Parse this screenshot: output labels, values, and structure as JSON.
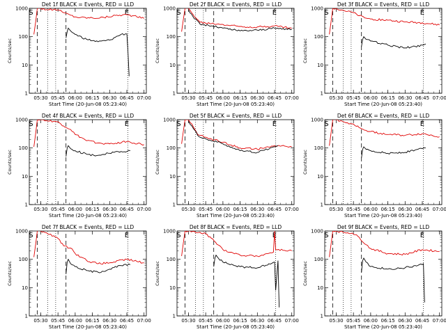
{
  "colors": {
    "events": "#000000",
    "lld": "#e00000",
    "axes": "#000000",
    "background": "#ffffff"
  },
  "chart_data": [
    {
      "type": "line",
      "title": "Det 1f BLACK = Events, RED = LLD",
      "xlabel": "Start Time (20-Jun-08 05:23:40)",
      "ylabel": "Counts/sec",
      "yscale": "log",
      "ylim": [
        1,
        1000
      ],
      "x_tick_labels": [
        "05:30",
        "05:45",
        "06:00",
        "06:15",
        "06:30",
        "06:45",
        "07:00"
      ],
      "y_tick_labels": [
        "1",
        "10",
        "100",
        "1000"
      ],
      "markers": {
        "start": "S",
        "end": "E"
      },
      "series": [
        {
          "color": "red",
          "x": [
            "05:24",
            "05:27",
            "05:30",
            "05:36",
            "05:45",
            "05:50",
            "05:55",
            "06:00",
            "06:05",
            "06:15",
            "06:25",
            "06:35",
            "06:45",
            "06:50",
            "07:00"
          ],
          "y": [
            120,
            1000,
            1000,
            900,
            900,
            700,
            600,
            500,
            480,
            460,
            480,
            560,
            600,
            550,
            440
          ]
        },
        {
          "color": "black",
          "x": [
            "05:52",
            "05:53",
            "05:54",
            "05:56",
            "06:00",
            "06:10",
            "06:20",
            "06:30",
            "06:35",
            "06:40",
            "06:45",
            "06:46",
            "06:47"
          ],
          "y": [
            90,
            150,
            200,
            160,
            120,
            80,
            66,
            75,
            95,
            120,
            125,
            30,
            4
          ]
        }
      ]
    },
    {
      "type": "line",
      "title": "Det 2f BLACK = Events, RED = LLD",
      "xlabel": "Start Time (20-Jun-08 05:23:40)",
      "ylabel": "Counts/sec",
      "yscale": "log",
      "ylim": [
        1,
        1000
      ],
      "x_tick_labels": [
        "05:30",
        "05:45",
        "06:00",
        "06:15",
        "06:30",
        "06:45",
        "07:00"
      ],
      "y_tick_labels": [
        "1",
        "10",
        "100",
        "1000"
      ],
      "markers": {
        "start": "S",
        "end": "E"
      },
      "series": [
        {
          "color": "red",
          "x": [
            "05:24",
            "05:27",
            "05:30",
            "05:34",
            "05:40",
            "05:50",
            "06:00",
            "06:15",
            "06:30",
            "06:45",
            "07:00"
          ],
          "y": [
            150,
            1000,
            1000,
            600,
            320,
            290,
            270,
            230,
            220,
            240,
            200
          ]
        },
        {
          "color": "black",
          "x": [
            "05:30",
            "05:34",
            "05:40",
            "05:50",
            "06:00",
            "06:15",
            "06:30",
            "06:45",
            "07:00"
          ],
          "y": [
            900,
            500,
            280,
            240,
            200,
            160,
            170,
            200,
            180
          ]
        }
      ]
    },
    {
      "type": "line",
      "title": "Det 3f BLACK = Events, RED = LLD",
      "xlabel": "Start Time (20-Jun-08 05:23:40)",
      "ylabel": "Counts/sec",
      "yscale": "log",
      "ylim": [
        1,
        1000
      ],
      "x_tick_labels": [
        "05:30",
        "05:45",
        "06:00",
        "06:15",
        "06:30",
        "06:45",
        "07:00"
      ],
      "y_tick_labels": [
        "1",
        "10",
        "100",
        "1000"
      ],
      "markers": {
        "start": "S",
        "end": "E"
      },
      "series": [
        {
          "color": "red",
          "x": [
            "05:24",
            "05:27",
            "05:30",
            "05:36",
            "05:45",
            "05:50",
            "05:56",
            "06:00",
            "06:15",
            "06:30",
            "06:45",
            "07:00"
          ],
          "y": [
            120,
            1000,
            1000,
            850,
            700,
            550,
            450,
            420,
            380,
            330,
            310,
            260
          ]
        },
        {
          "color": "black",
          "x": [
            "05:52",
            "05:53",
            "05:54",
            "05:56",
            "06:00",
            "06:15",
            "06:30",
            "06:45",
            "06:48"
          ],
          "y": [
            45,
            80,
            100,
            80,
            70,
            50,
            40,
            50,
            55
          ]
        }
      ]
    },
    {
      "type": "line",
      "title": "Det 4f BLACK = Events, RED = LLD",
      "xlabel": "Start Time (20-Jun-08 05:23:40)",
      "ylabel": "Counts/sec",
      "yscale": "log",
      "ylim": [
        1,
        1000
      ],
      "x_tick_labels": [
        "05:30",
        "05:45",
        "06:00",
        "06:15",
        "06:30",
        "06:45",
        "07:00"
      ],
      "y_tick_labels": [
        "1",
        "10",
        "100",
        "1000"
      ],
      "markers": {
        "start": "S",
        "end": "E"
      },
      "series": [
        {
          "color": "red",
          "x": [
            "05:24",
            "05:27",
            "05:30",
            "05:36",
            "05:44",
            "05:50",
            "05:56",
            "06:00",
            "06:10",
            "06:20",
            "06:30",
            "06:45",
            "07:00"
          ],
          "y": [
            110,
            1000,
            1000,
            900,
            850,
            600,
            450,
            300,
            180,
            150,
            140,
            170,
            130
          ]
        },
        {
          "color": "black",
          "x": [
            "05:52",
            "05:53",
            "05:54",
            "05:56",
            "06:00",
            "06:10",
            "06:20",
            "06:30",
            "06:40",
            "06:48"
          ],
          "y": [
            50,
            100,
            120,
            95,
            80,
            60,
            55,
            65,
            75,
            80
          ]
        }
      ]
    },
    {
      "type": "line",
      "title": "Det 5f BLACK = Events, RED = LLD",
      "xlabel": "Start Time (20-Jun-08 05:23:40)",
      "ylabel": "Counts/sec",
      "yscale": "log",
      "ylim": [
        1,
        1000
      ],
      "x_tick_labels": [
        "05:30",
        "05:45",
        "06:00",
        "06:15",
        "06:30",
        "06:45",
        "07:00"
      ],
      "y_tick_labels": [
        "1",
        "10",
        "100",
        "1000"
      ],
      "markers": {
        "start": "S",
        "end": "E"
      },
      "series": [
        {
          "color": "red",
          "x": [
            "05:24",
            "05:27",
            "05:30",
            "05:33",
            "05:38",
            "05:45",
            "06:00",
            "06:15",
            "06:30",
            "06:45",
            "07:00"
          ],
          "y": [
            140,
            1000,
            1000,
            700,
            300,
            240,
            160,
            100,
            90,
            120,
            110
          ]
        },
        {
          "color": "black",
          "x": [
            "05:30",
            "05:33",
            "05:38",
            "05:45",
            "06:00",
            "06:15",
            "06:30",
            "06:45",
            "06:48"
          ],
          "y": [
            900,
            600,
            280,
            210,
            140,
            80,
            70,
            110,
            120
          ]
        }
      ]
    },
    {
      "type": "line",
      "title": "Det 6f BLACK = Events, RED = LLD",
      "xlabel": "Start Time (20-Jun-08 05:23:40)",
      "ylabel": "Counts/sec",
      "yscale": "log",
      "ylim": [
        1,
        1000
      ],
      "x_tick_labels": [
        "05:30",
        "05:45",
        "06:00",
        "06:15",
        "06:30",
        "06:45",
        "07:00"
      ],
      "y_tick_labels": [
        "1",
        "10",
        "100",
        "1000"
      ],
      "markers": {
        "start": "S",
        "end": "E"
      },
      "series": [
        {
          "color": "red",
          "x": [
            "05:24",
            "05:27",
            "05:30",
            "05:36",
            "05:45",
            "05:50",
            "05:56",
            "06:00",
            "06:15",
            "06:30",
            "06:45",
            "07:00"
          ],
          "y": [
            120,
            1000,
            1000,
            850,
            700,
            520,
            420,
            380,
            300,
            280,
            320,
            250
          ]
        },
        {
          "color": "black",
          "x": [
            "05:52",
            "05:53",
            "05:54",
            "05:56",
            "06:00",
            "06:15",
            "06:30",
            "06:45",
            "06:48"
          ],
          "y": [
            45,
            90,
            110,
            90,
            80,
            65,
            70,
            95,
            100
          ]
        }
      ]
    },
    {
      "type": "line",
      "title": "Det 7f BLACK = Events, RED = LLD",
      "xlabel": "Start Time (20-Jun-08 05:23:40)",
      "ylabel": "Counts/sec",
      "yscale": "log",
      "ylim": [
        1,
        1000
      ],
      "x_tick_labels": [
        "05:30",
        "05:45",
        "06:00",
        "06:15",
        "06:30",
        "06:45",
        "07:00"
      ],
      "y_tick_labels": [
        "1",
        "10",
        "100",
        "1000"
      ],
      "markers": {
        "start": "S",
        "end": "E"
      },
      "series": [
        {
          "color": "red",
          "x": [
            "05:24",
            "05:27",
            "05:30",
            "05:36",
            "05:44",
            "05:50",
            "05:56",
            "06:00",
            "06:10",
            "06:20",
            "06:30",
            "06:45",
            "07:00"
          ],
          "y": [
            120,
            1000,
            1000,
            800,
            600,
            300,
            250,
            160,
            90,
            70,
            75,
            100,
            75
          ]
        },
        {
          "color": "black",
          "x": [
            "05:52",
            "05:53",
            "05:54",
            "05:56",
            "06:00",
            "06:10",
            "06:20",
            "06:30",
            "06:40",
            "06:48"
          ],
          "y": [
            30,
            80,
            100,
            70,
            55,
            40,
            35,
            45,
            60,
            65
          ]
        }
      ]
    },
    {
      "type": "line",
      "title": "Det 8f BLACK = Events, RED = LLD",
      "xlabel": "Start Time (20-Jun-08 05:23:40)",
      "ylabel": "Counts/sec",
      "yscale": "log",
      "ylim": [
        1,
        1000
      ],
      "x_tick_labels": [
        "05:30",
        "05:45",
        "06:00",
        "06:15",
        "06:30",
        "06:45",
        "07:00"
      ],
      "y_tick_labels": [
        "1",
        "10",
        "100",
        "1000"
      ],
      "markers": {
        "start": "S",
        "end": "E"
      },
      "series": [
        {
          "color": "red",
          "x": [
            "05:24",
            "05:27",
            "05:30",
            "05:36",
            "05:45",
            "05:50",
            "05:56",
            "06:00",
            "06:15",
            "06:30",
            "06:44",
            "06:45",
            "06:46",
            "07:00"
          ],
          "y": [
            130,
            1000,
            1000,
            900,
            800,
            550,
            320,
            220,
            140,
            130,
            180,
            1000,
            220,
            200
          ]
        },
        {
          "color": "black",
          "x": [
            "05:52",
            "05:53",
            "05:54",
            "05:56",
            "06:00",
            "06:15",
            "06:30",
            "06:40",
            "06:45",
            "06:46",
            "06:48",
            "06:49"
          ],
          "y": [
            55,
            110,
            140,
            110,
            80,
            55,
            50,
            70,
            80,
            8,
            90,
            2
          ]
        }
      ]
    },
    {
      "type": "line",
      "title": "Det 9f BLACK = Events, RED = LLD",
      "xlabel": "Start Time (20-Jun-08 05:23:40)",
      "ylabel": "Counts/sec",
      "yscale": "log",
      "ylim": [
        1,
        1000
      ],
      "x_tick_labels": [
        "05:30",
        "05:45",
        "06:00",
        "06:15",
        "06:30",
        "06:45",
        "07:00"
      ],
      "y_tick_labels": [
        "1",
        "10",
        "100",
        "1000"
      ],
      "markers": {
        "start": "S",
        "end": "E"
      },
      "series": [
        {
          "color": "red",
          "x": [
            "05:24",
            "05:27",
            "05:30",
            "05:36",
            "05:44",
            "05:50",
            "05:56",
            "06:00",
            "06:15",
            "06:30",
            "06:45",
            "07:00"
          ],
          "y": [
            120,
            1000,
            1000,
            900,
            850,
            600,
            330,
            240,
            160,
            150,
            220,
            190
          ]
        },
        {
          "color": "black",
          "x": [
            "05:52",
            "05:53",
            "05:54",
            "05:56",
            "06:00",
            "06:15",
            "06:30",
            "06:45",
            "06:46",
            "06:47"
          ],
          "y": [
            35,
            90,
            110,
            80,
            55,
            45,
            50,
            65,
            70,
            3
          ]
        }
      ]
    }
  ]
}
